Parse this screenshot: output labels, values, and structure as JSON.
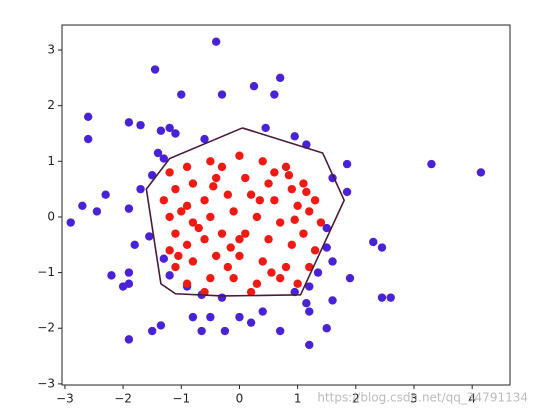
{
  "chart_data": {
    "type": "scatter",
    "xlim": [
      -3.05,
      4.65
    ],
    "ylim": [
      -3.02,
      3.45
    ],
    "xticks": [
      {
        "value": -3,
        "label": "−3"
      },
      {
        "value": -2,
        "label": "−2"
      },
      {
        "value": -1,
        "label": "−1"
      },
      0,
      1,
      2,
      3,
      4
    ],
    "yticks": [
      {
        "value": -3,
        "label": "−3"
      },
      {
        "value": -2,
        "label": "−2"
      },
      {
        "value": -1,
        "label": "−1"
      },
      0,
      1,
      2,
      3
    ],
    "watermark": "https://blog.csdn.net/qq_34791134",
    "series": [
      {
        "color": "#4a22d6",
        "x": [
          -0.4,
          -1.45,
          0.7,
          0.25,
          -1.0,
          -0.3,
          0.6,
          -2.6,
          -1.9,
          -1.7,
          -1.2,
          0.45,
          -1.35,
          -1.1,
          -0.6,
          0.95,
          -2.6,
          1.15,
          -1.4,
          -1.3,
          1.85,
          3.3,
          4.15,
          -1.5,
          1.6,
          -1.7,
          1.85,
          -2.3,
          -2.7,
          -1.9,
          -2.45,
          -2.9,
          1.5,
          -1.55,
          1.5,
          -1.8,
          2.3,
          -1.3,
          1.6,
          2.45,
          -1.9,
          -2.2,
          -1.2,
          1.35,
          1.9,
          -1.9,
          -2.0,
          1.2,
          -0.9,
          0.95,
          -0.65,
          -0.3,
          2.6,
          1.6,
          2.45,
          -0.5,
          0,
          0.4,
          -0.8,
          1.2,
          -1.35,
          -1.5,
          -0.65,
          -0.25,
          0.7,
          1.5,
          -1.9,
          1.2,
          1.15,
          0.2
        ],
        "y": [
          3.15,
          2.65,
          2.5,
          2.35,
          2.2,
          2.2,
          2.2,
          1.8,
          1.7,
          1.65,
          1.6,
          1.6,
          1.55,
          1.5,
          1.4,
          1.45,
          1.4,
          1.3,
          1.15,
          1.05,
          0.95,
          0.95,
          0.8,
          0.75,
          0.7,
          0.5,
          0.45,
          0.4,
          0.2,
          0.15,
          0.1,
          -0.1,
          -0.2,
          -0.35,
          -0.55,
          -0.5,
          -0.45,
          -0.75,
          -0.8,
          -0.55,
          -1.0,
          -1.05,
          -1.05,
          -1.0,
          -1.1,
          -1.2,
          -1.25,
          -1.25,
          -1.25,
          -1.35,
          -1.4,
          -1.45,
          -1.45,
          -1.5,
          -1.45,
          -1.8,
          -1.8,
          -1.7,
          -1.8,
          -1.7,
          -1.95,
          -2.05,
          -2.05,
          -2.05,
          -2.05,
          -2.0,
          -2.2,
          -2.3,
          -1.55,
          -1.9
        ]
      },
      {
        "color": "#f01a14",
        "x": [
          -1.2,
          -0.9,
          -0.5,
          0,
          0.4,
          0.8,
          1.1,
          1.3,
          -1.3,
          -1.1,
          -0.8,
          -0.4,
          0.1,
          0.5,
          0.9,
          1.2,
          -1.2,
          -0.9,
          -0.6,
          -0.2,
          0.2,
          0.6,
          1.0,
          1.4,
          -1.1,
          -0.8,
          -0.5,
          -0.1,
          0.3,
          0.7,
          1.1,
          -1.2,
          -0.9,
          -0.6,
          -0.3,
          0.1,
          0.5,
          0.9,
          1.3,
          -1.1,
          -0.8,
          -0.4,
          0,
          0.4,
          0.8,
          1.2,
          -0.9,
          -0.5,
          -0.1,
          0.3,
          0.7,
          1.0,
          -0.6,
          0.2,
          -1.0,
          0.0,
          0.6,
          -0.3,
          0.95,
          -0.7,
          0.35,
          -0.2,
          1.15,
          -1.05,
          0.55,
          -0.45,
          0.85,
          -0.15
        ],
        "y": [
          0.8,
          0.9,
          1.0,
          1.1,
          1.0,
          0.9,
          0.6,
          0.3,
          0.3,
          0.5,
          0.6,
          0.7,
          0.7,
          0.6,
          0.5,
          0.1,
          0,
          0.2,
          0.3,
          0.4,
          0.4,
          0.3,
          0.2,
          -0.1,
          -0.3,
          -0.1,
          0,
          0.1,
          0,
          -0.1,
          -0.3,
          -0.6,
          -0.5,
          -0.4,
          -0.3,
          -0.3,
          -0.4,
          -0.5,
          -0.6,
          -0.9,
          -0.8,
          -0.7,
          -0.7,
          -0.8,
          -0.9,
          -0.9,
          -1.2,
          -1.1,
          -1.1,
          -1.2,
          -1.1,
          -1.2,
          -1.35,
          -1.35,
          0.1,
          -0.4,
          0.8,
          0.9,
          -0.05,
          -0.2,
          0.3,
          -0.9,
          0.45,
          -0.7,
          -1.0,
          0.55,
          0.75,
          -0.55
        ]
      },
      {
        "type": "line",
        "color": "#4a1a3c",
        "x": [
          0.05,
          1.43,
          1.8,
          1.05,
          -0.3,
          -1.1,
          -1.35,
          -1.6,
          -1.2,
          0.05
        ],
        "y": [
          1.6,
          1.15,
          0.3,
          -1.4,
          -1.42,
          -1.38,
          -1.2,
          0.5,
          1.05,
          1.6
        ]
      }
    ]
  }
}
